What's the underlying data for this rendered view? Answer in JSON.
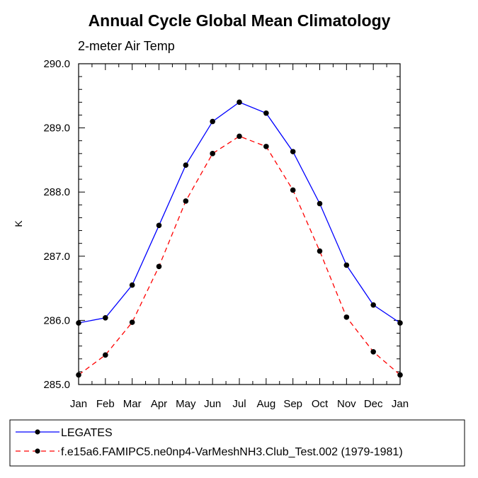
{
  "chart_data": {
    "type": "line",
    "title": "Annual Cycle Global Mean Climatology",
    "subtitle": "2-meter Air Temp",
    "xlabel": "",
    "ylabel": "K",
    "categories": [
      "Jan",
      "Feb",
      "Mar",
      "Apr",
      "May",
      "Jun",
      "Jul",
      "Aug",
      "Sep",
      "Oct",
      "Nov",
      "Dec",
      "Jan"
    ],
    "ylim": [
      285.0,
      290.0
    ],
    "yticks": [
      285.0,
      286.0,
      287.0,
      288.0,
      289.0,
      290.0
    ],
    "ytick_labels": [
      "285.0",
      "286.0",
      "287.0",
      "288.0",
      "289.0",
      "290.0"
    ],
    "grid": false,
    "legend_position": "bottom",
    "series": [
      {
        "name": "LEGATES",
        "color": "#0000ff",
        "dash": "solid",
        "marker": "filled-circle",
        "values": [
          285.96,
          286.04,
          286.55,
          287.48,
          288.42,
          289.1,
          289.4,
          289.23,
          288.63,
          287.82,
          286.86,
          286.24,
          285.96
        ]
      },
      {
        "name": "f.e15a6.FAMIPC5.ne0np4-VarMeshNH3.Club_Test.002 (1979-1981)",
        "color": "#ff0000",
        "dash": "dashed",
        "marker": "filled-circle",
        "values": [
          285.15,
          285.46,
          285.97,
          286.84,
          287.86,
          288.6,
          288.87,
          288.71,
          288.03,
          287.08,
          286.05,
          285.51,
          285.15
        ]
      }
    ]
  }
}
